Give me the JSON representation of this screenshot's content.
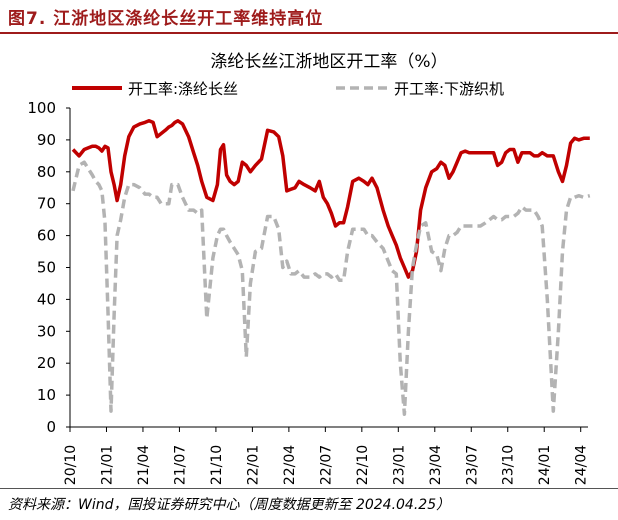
{
  "figure": {
    "title": "图7. 江浙地区涤纶长丝开工率维持高位",
    "source": "资料来源：Wind，国投证券研究中心（周度数据更新至 2024.04.25）"
  },
  "colors": {
    "accent": "#9e1b1b",
    "series_main": "#c00000",
    "series_secondary": "#b3b3b3"
  },
  "chart_data": {
    "type": "line",
    "title": "涤纶长丝江浙地区开工率（%）",
    "xlabel": "",
    "ylabel": "",
    "ylim": [
      0,
      100
    ],
    "yticks": [
      0,
      10,
      20,
      30,
      40,
      50,
      60,
      70,
      80,
      90,
      100
    ],
    "xticks": [
      "20/10",
      "21/01",
      "21/04",
      "21/07",
      "21/10",
      "22/01",
      "22/04",
      "22/07",
      "22/10",
      "23/01",
      "23/04",
      "23/07",
      "23/10",
      "24/01",
      "24/04"
    ],
    "xrange": [
      "20/10",
      "24/04"
    ],
    "legend_position": "top",
    "grid": false,
    "series": [
      {
        "name": "开工率:涤纶长丝",
        "style": "solid",
        "color": "#c00000",
        "points": [
          [
            "20/10",
            87
          ],
          [
            "20/10",
            85
          ],
          [
            "20/11",
            87
          ],
          [
            "20/11",
            87.5
          ],
          [
            "20/11",
            88
          ],
          [
            "20/12",
            88
          ],
          [
            "20/12",
            87.5
          ],
          [
            "20/12",
            86.5
          ],
          [
            "20/12",
            88
          ],
          [
            "21/01",
            87.5
          ],
          [
            "21/01",
            80
          ],
          [
            "21/01",
            76
          ],
          [
            "21/01",
            71
          ],
          [
            "21/02",
            76
          ],
          [
            "21/02",
            85
          ],
          [
            "21/02",
            91
          ],
          [
            "21/03",
            94
          ],
          [
            "21/03",
            95
          ],
          [
            "21/04",
            95.5
          ],
          [
            "21/04",
            96
          ],
          [
            "21/04",
            95.5
          ],
          [
            "21/05",
            91
          ],
          [
            "21/05",
            92
          ],
          [
            "21/05",
            93
          ],
          [
            "21/06",
            94
          ],
          [
            "21/06",
            94.5
          ],
          [
            "21/06",
            95.5
          ],
          [
            "21/06",
            96
          ],
          [
            "21/07",
            95
          ],
          [
            "21/07",
            91
          ],
          [
            "21/08",
            86
          ],
          [
            "21/08",
            82
          ],
          [
            "21/08",
            77
          ],
          [
            "21/09",
            72
          ],
          [
            "21/09",
            71
          ],
          [
            "21/10",
            76
          ],
          [
            "21/10",
            87
          ],
          [
            "21/10",
            88.5
          ],
          [
            "21/10",
            79
          ],
          [
            "21/11",
            77
          ],
          [
            "21/11",
            76
          ],
          [
            "21/11",
            77
          ],
          [
            "21/12",
            83
          ],
          [
            "21/12",
            82
          ],
          [
            "21/12",
            80
          ],
          [
            "22/01",
            82
          ],
          [
            "22/01",
            84
          ],
          [
            "22/02",
            93
          ],
          [
            "22/02",
            92.5
          ],
          [
            "22/03",
            91
          ],
          [
            "22/03",
            85
          ],
          [
            "22/03",
            74
          ],
          [
            "22/04",
            74.5
          ],
          [
            "22/04",
            75
          ],
          [
            "22/04",
            77
          ],
          [
            "22/05",
            76
          ],
          [
            "22/05",
            75
          ],
          [
            "22/06",
            74
          ],
          [
            "22/06",
            77
          ],
          [
            "22/06",
            72
          ],
          [
            "22/07",
            70
          ],
          [
            "22/07",
            67
          ],
          [
            "22/07",
            63
          ],
          [
            "22/08",
            64
          ],
          [
            "22/08",
            64
          ],
          [
            "22/08",
            69
          ],
          [
            "22/09",
            77
          ],
          [
            "22/09",
            78
          ],
          [
            "22/10",
            77
          ],
          [
            "22/10",
            76
          ],
          [
            "22/10",
            78
          ],
          [
            "22/11",
            75
          ],
          [
            "22/11",
            68
          ],
          [
            "22/12",
            63
          ],
          [
            "22/12",
            60
          ],
          [
            "22/12",
            57
          ],
          [
            "23/01",
            53
          ],
          [
            "23/01",
            50
          ],
          [
            "23/01",
            47
          ],
          [
            "23/02",
            49
          ],
          [
            "23/02",
            55
          ],
          [
            "23/02",
            68
          ],
          [
            "23/03",
            75
          ],
          [
            "23/03",
            80
          ],
          [
            "23/04",
            81
          ],
          [
            "23/04",
            83
          ],
          [
            "23/04",
            82
          ],
          [
            "23/05",
            78
          ],
          [
            "23/05",
            80
          ],
          [
            "23/05",
            83
          ],
          [
            "23/06",
            86
          ],
          [
            "23/06",
            86.5
          ],
          [
            "23/06",
            86
          ],
          [
            "23/07",
            86
          ],
          [
            "23/07",
            86
          ],
          [
            "23/08",
            86
          ],
          [
            "23/08",
            86
          ],
          [
            "23/08",
            86
          ],
          [
            "23/09",
            82
          ],
          [
            "23/09",
            83
          ],
          [
            "23/09",
            86
          ],
          [
            "23/10",
            87
          ],
          [
            "23/10",
            87
          ],
          [
            "23/10",
            83
          ],
          [
            "23/11",
            86
          ],
          [
            "23/11",
            86
          ],
          [
            "23/11",
            86
          ],
          [
            "23/12",
            85
          ],
          [
            "23/12",
            85
          ],
          [
            "23/12",
            86
          ],
          [
            "24/01",
            85
          ],
          [
            "24/01",
            85
          ],
          [
            "24/02",
            80
          ],
          [
            "24/02",
            77
          ],
          [
            "24/02",
            82
          ],
          [
            "24/03",
            89
          ],
          [
            "24/03",
            90.5
          ],
          [
            "24/03",
            90
          ],
          [
            "24/04",
            90.5
          ],
          [
            "24/04",
            90.5
          ]
        ]
      },
      {
        "name": "开工率:下游织机",
        "style": "dashed",
        "color": "#b3b3b3",
        "points": [
          [
            "20/10",
            74
          ],
          [
            "20/10",
            82
          ],
          [
            "20/11",
            83
          ],
          [
            "20/11",
            81
          ],
          [
            "20/11",
            79
          ],
          [
            "20/12",
            77
          ],
          [
            "20/12",
            76
          ],
          [
            "20/12",
            74
          ],
          [
            "20/12",
            64
          ],
          [
            "21/01",
            36
          ],
          [
            "21/01",
            5
          ],
          [
            "21/01",
            35
          ],
          [
            "21/01",
            60
          ],
          [
            "21/02",
            65
          ],
          [
            "21/02",
            72
          ],
          [
            "21/02",
            76
          ],
          [
            "21/03",
            76
          ],
          [
            "21/03",
            75
          ],
          [
            "21/04",
            73
          ],
          [
            "21/04",
            73
          ],
          [
            "21/04",
            72
          ],
          [
            "21/05",
            72
          ],
          [
            "21/05",
            70
          ],
          [
            "21/05",
            70
          ],
          [
            "21/06",
            70
          ],
          [
            "21/06",
            76
          ],
          [
            "21/06",
            76
          ],
          [
            "21/06",
            76
          ],
          [
            "21/07",
            72
          ],
          [
            "21/07",
            68
          ],
          [
            "21/08",
            68
          ],
          [
            "21/08",
            67
          ],
          [
            "21/08",
            68
          ],
          [
            "21/09",
            34
          ],
          [
            "21/09",
            53
          ],
          [
            "21/10",
            60
          ],
          [
            "21/10",
            62
          ],
          [
            "21/10",
            62
          ],
          [
            "21/10",
            60
          ],
          [
            "21/11",
            58
          ],
          [
            "21/11",
            56
          ],
          [
            "21/11",
            54
          ],
          [
            "21/12",
            49
          ],
          [
            "21/12",
            22
          ],
          [
            "21/12",
            45
          ],
          [
            "22/01",
            55
          ],
          [
            "22/01",
            56
          ],
          [
            "22/02",
            66
          ],
          [
            "22/02",
            66
          ],
          [
            "22/03",
            62
          ],
          [
            "22/03",
            50
          ],
          [
            "22/03",
            52
          ],
          [
            "22/04",
            48
          ],
          [
            "22/04",
            48
          ],
          [
            "22/04",
            49
          ],
          [
            "22/05",
            47
          ],
          [
            "22/05",
            47
          ],
          [
            "22/06",
            48
          ],
          [
            "22/06",
            47
          ],
          [
            "22/06",
            48
          ],
          [
            "22/07",
            48
          ],
          [
            "22/07",
            47
          ],
          [
            "22/07",
            48
          ],
          [
            "22/08",
            46
          ],
          [
            "22/08",
            46
          ],
          [
            "22/08",
            55
          ],
          [
            "22/09",
            62
          ],
          [
            "22/09",
            62
          ],
          [
            "22/10",
            62
          ],
          [
            "22/10",
            60
          ],
          [
            "22/10",
            60
          ],
          [
            "22/11",
            58
          ],
          [
            "22/11",
            56
          ],
          [
            "22/12",
            52
          ],
          [
            "22/12",
            49
          ],
          [
            "22/12",
            48
          ],
          [
            "23/01",
            20
          ],
          [
            "23/01",
            4
          ],
          [
            "23/01",
            30
          ],
          [
            "23/02",
            50
          ],
          [
            "23/02",
            57
          ],
          [
            "23/02",
            63
          ],
          [
            "23/03",
            64
          ],
          [
            "23/03",
            55
          ],
          [
            "23/04",
            54
          ],
          [
            "23/04",
            49
          ],
          [
            "23/04",
            56
          ],
          [
            "23/05",
            60
          ],
          [
            "23/05",
            60
          ],
          [
            "23/05",
            61
          ],
          [
            "23/06",
            63
          ],
          [
            "23/06",
            63
          ],
          [
            "23/06",
            63
          ],
          [
            "23/07",
            63
          ],
          [
            "23/07",
            63
          ],
          [
            "23/08",
            64
          ],
          [
            "23/08",
            65
          ],
          [
            "23/08",
            66
          ],
          [
            "23/09",
            65
          ],
          [
            "23/09",
            65
          ],
          [
            "23/09",
            66
          ],
          [
            "23/10",
            66
          ],
          [
            "23/10",
            66
          ],
          [
            "23/10",
            67
          ],
          [
            "23/11",
            69
          ],
          [
            "23/11",
            68
          ],
          [
            "23/11",
            68
          ],
          [
            "23/12",
            68
          ],
          [
            "23/12",
            66
          ],
          [
            "23/12",
            63
          ],
          [
            "24/01",
            40
          ],
          [
            "24/01",
            5
          ],
          [
            "24/02",
            30
          ],
          [
            "24/02",
            55
          ],
          [
            "24/02",
            68
          ],
          [
            "24/03",
            72
          ],
          [
            "24/03",
            72
          ],
          [
            "24/03",
            72.5
          ],
          [
            "24/04",
            72
          ],
          [
            "24/04",
            72.5
          ]
        ]
      }
    ]
  }
}
